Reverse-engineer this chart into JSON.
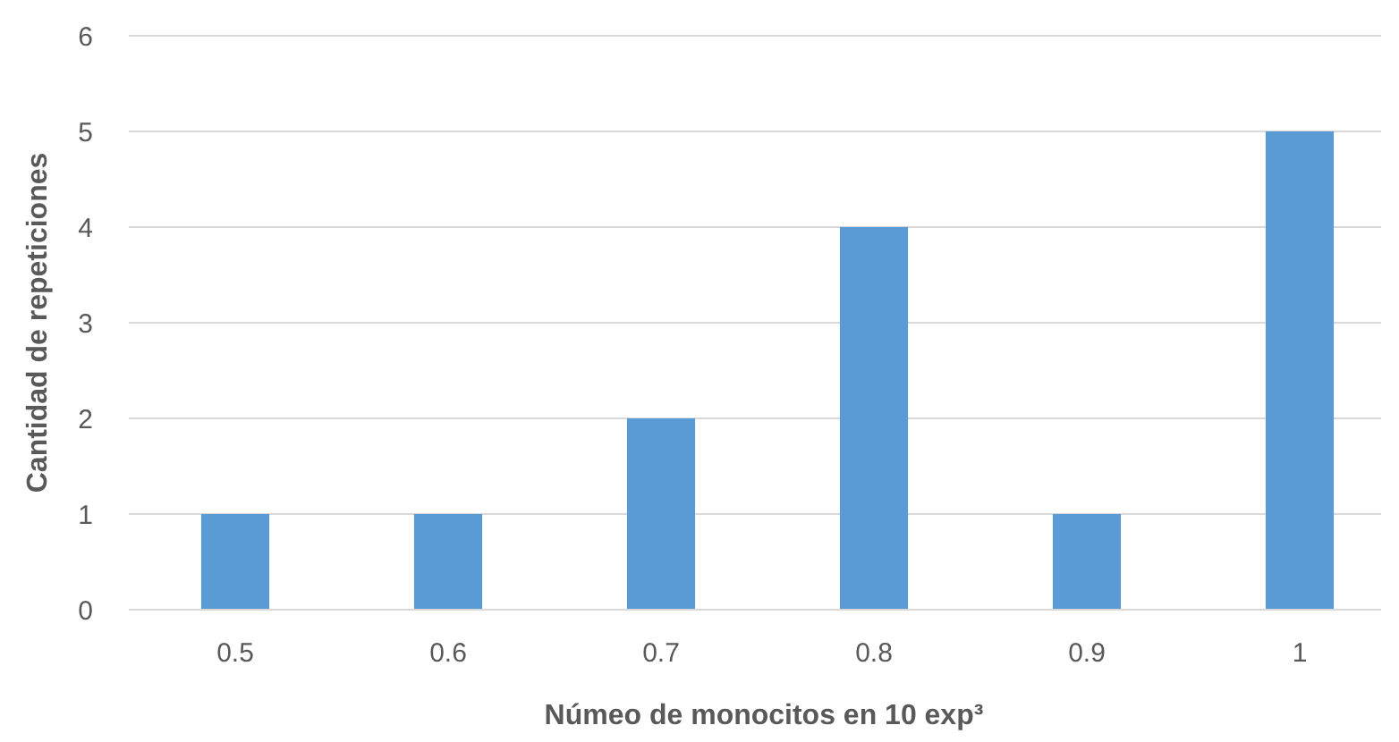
{
  "chart_data": {
    "type": "bar",
    "xlabel": "Númeo de monocitos en 10 exp³",
    "ylabel": "Cantidad de repeticiones",
    "categories": [
      "0.5",
      "0.6",
      "0.7",
      "0.8",
      "0.9",
      "1"
    ],
    "values": [
      1,
      1,
      2,
      4,
      1,
      5
    ],
    "color": "#5b9bd5",
    "ylim": [
      0,
      6
    ],
    "yticks": [
      0,
      1,
      2,
      3,
      4,
      5,
      6
    ],
    "grid": "y"
  }
}
